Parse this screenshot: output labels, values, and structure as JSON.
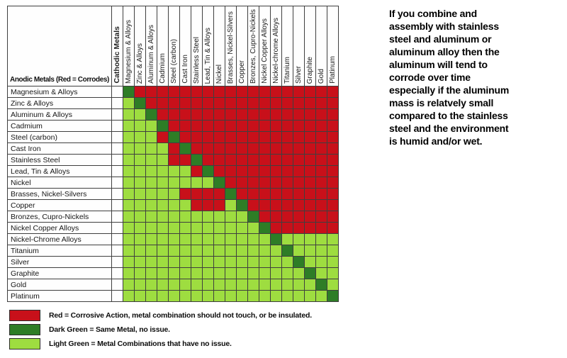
{
  "chart_data": {
    "type": "heatmap",
    "corner_label": "Anodic Metals (Red = Corrodes)",
    "cathodic_label": "Cathodic Metals",
    "columns": [
      "Magnesium & Alloys",
      "Zinc & Alloys",
      "Aluminum & Alloys",
      "Cadmium",
      "Steel (carbon)",
      "Cast Iron",
      "Stainless Steel",
      "Lead, Tin & Alloys",
      "Nickel",
      "Brasses, Nickel-Silvers",
      "Copper",
      "Bronzes, Cupro-Nickels",
      "Nickel Copper Alloys",
      "Nickel-chrome Alloys",
      "Titanium",
      "Silver",
      "Graphite",
      "Gold",
      "Platinum"
    ],
    "rows": [
      "Magnesium & Alloys",
      "Zinc & Alloys",
      "Aluminum & Alloys",
      "Cadmium",
      "Steel (carbon)",
      "Cast Iron",
      "Stainless Steel",
      "Lead, Tin & Alloys",
      "Nickel",
      "Brasses, Nickel-Silvers",
      "Copper",
      "Bronzes, Cupro-Nickels",
      "Nickel Copper Alloys",
      "Nickel-Chrome Alloys",
      "Titanium",
      "Silver",
      "Graphite",
      "Gold",
      "Platinum"
    ],
    "matrix": [
      "DRRRRRRRRRRRRRRRRRR",
      "LDRRRRRRRRRRRRRRRRR",
      "LLDRRRRRRRRRRRRRRRR",
      "LLLDRRRRRRRRRRRRRRR",
      "LLLRDRRRRRRRRRRRRRR",
      "LLLLRDRRRRRRRRRRRRR",
      "LLLLRRDRRRRRRRRRRRR",
      "LLLLLLRDRRRRRRRRRRR",
      "LLLLLLLLDRRRRRRRRRR",
      "LLLLLRRRRDRRRRRRRRR",
      "LLLLLLRRRLDRRRRRRRR",
      "LLLLLLLLLLLDRRRRRRR",
      "LLLLLLLLLLLLDRRRRRR",
      "LLLLLLLLLLLLLDLLLLL",
      "LLLLLLLLLLLLLLDLLLL",
      "LLLLLLLLLLLLLLLDLLL",
      "LLLLLLLLLLLLLLLLDLL",
      "LLLLLLLLLLLLLLLLLDL",
      "LLLLLLLLLLLLLLLLLLD"
    ],
    "code_colors": {
      "R": "#c8101a",
      "D": "#2e7d26",
      "L": "#9edd40"
    }
  },
  "legend": {
    "items": [
      {
        "id": "red",
        "hex": "#c8101a",
        "label": "Red = Corrosive Action, metal combination should not touch, or be insulated."
      },
      {
        "id": "dark-green",
        "hex": "#2e7d26",
        "label": "Dark Green = Same Metal, no issue."
      },
      {
        "id": "light-green",
        "hex": "#9edd40",
        "label": "Light Green = Metal Combinations that have no issue."
      }
    ]
  },
  "note": {
    "text": "If you combine and\nassembly with stainless\nsteel and aluminum or\naluminum alloy then the\naluminum will tend to\ncorrode over time\nespecially if the aluminum\nmass is relatvely small\ncompared to the stainless\nsteel and the environment\nis humid and/or wet."
  },
  "colors": {
    "red": "#c8101a",
    "dark_green": "#2e7d26",
    "light_green": "#9edd40",
    "grid_line": "#3f3f3f"
  }
}
